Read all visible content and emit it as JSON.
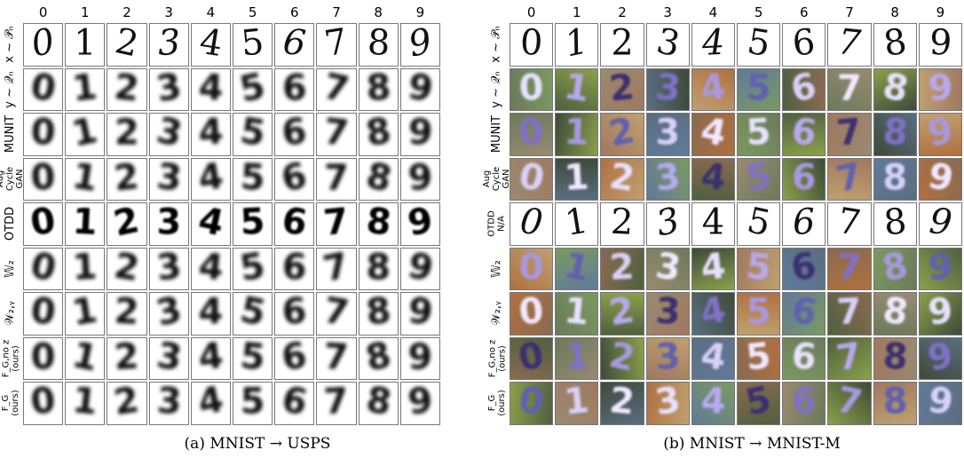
{
  "columns": [
    "0",
    "1",
    "2",
    "3",
    "4",
    "5",
    "6",
    "7",
    "8",
    "9"
  ],
  "panels": [
    {
      "id": "a",
      "caption": "(a) MNIST → USPS",
      "rows": [
        {
          "label": "x ~ 𝒫ₙ",
          "style": "sharp"
        },
        {
          "label": "y ~ 𝒬ₙ",
          "style": "blur"
        },
        {
          "label": "MUNIT",
          "style": "blur"
        },
        {
          "label": "Aug\nCycle\nGAN",
          "style": "blur"
        },
        {
          "label": "OTDD",
          "style": "bold"
        },
        {
          "label": "𝕎₂",
          "style": "blur"
        },
        {
          "label": "𝒲₂,ᵧ",
          "style": "blur"
        },
        {
          "label": "F_G,no z\n(ours)",
          "style": "blur"
        },
        {
          "label": "F_G\n(ours)",
          "style": "blur"
        }
      ]
    },
    {
      "id": "b",
      "caption": "(b)  MNIST → MNIST-M",
      "rows": [
        {
          "label": "x ~ 𝒫ₙ",
          "style": "sharp"
        },
        {
          "label": "y ~ 𝒬ₙ",
          "style": "color"
        },
        {
          "label": "MUNIT",
          "style": "color"
        },
        {
          "label": "Aug\nCycle\nGAN",
          "style": "color"
        },
        {
          "label": "OTDD\nN/A",
          "style": "sharp"
        },
        {
          "label": "𝕎₂",
          "style": "color"
        },
        {
          "label": "𝒲₂,ᵧ",
          "style": "color"
        },
        {
          "label": "F_G,no z\n(ours)",
          "style": "color"
        },
        {
          "label": "F_G\n(ours)",
          "style": "color"
        }
      ]
    }
  ]
}
